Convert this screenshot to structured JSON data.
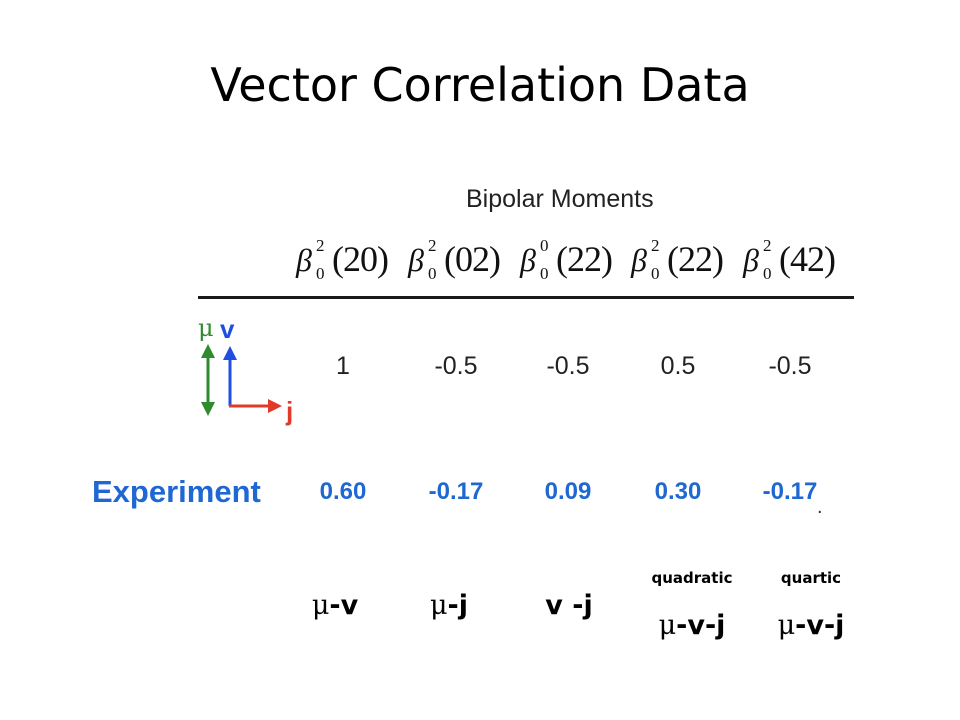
{
  "title": "Vector Correlation Data",
  "section_label": "Bipolar Moments",
  "moments": [
    {
      "symbol": "β",
      "superscript": "2",
      "subscript": "0",
      "argument": "(20)"
    },
    {
      "symbol": "β",
      "superscript": "2",
      "subscript": "0",
      "argument": "(02)"
    },
    {
      "symbol": "β",
      "superscript": "0",
      "subscript": "0",
      "argument": "(22)"
    },
    {
      "symbol": "β",
      "superscript": "2",
      "subscript": "0",
      "argument": "(22)"
    },
    {
      "symbol": "β",
      "superscript": "2",
      "subscript": "0",
      "argument": "(42)"
    }
  ],
  "diagram": {
    "labels": {
      "mu": "μ",
      "v": "v",
      "j": "j"
    },
    "colors": {
      "mu": "#2e8b2e",
      "v": "#1f4fe0",
      "j": "#e03a2a"
    }
  },
  "ideal_values": [
    "1",
    "-0.5",
    "-0.5",
    "0.5",
    "-0.5"
  ],
  "experiment": {
    "label": "Experiment",
    "values": [
      "0.60",
      "-0.17",
      "0.09",
      "0.30",
      "-0.17"
    ],
    "trailing_mark": ".",
    "color": "#1f67d2"
  },
  "correlations": [
    {
      "mu": "μ",
      "text": "-v",
      "order": ""
    },
    {
      "mu": "μ",
      "text": "-j",
      "order": ""
    },
    {
      "mu": "",
      "text": "v -j",
      "order": ""
    },
    {
      "mu": "μ",
      "text": "-v-j",
      "order": "quadratic"
    },
    {
      "mu": "μ",
      "text": "-v-j",
      "order": "quartic"
    }
  ]
}
